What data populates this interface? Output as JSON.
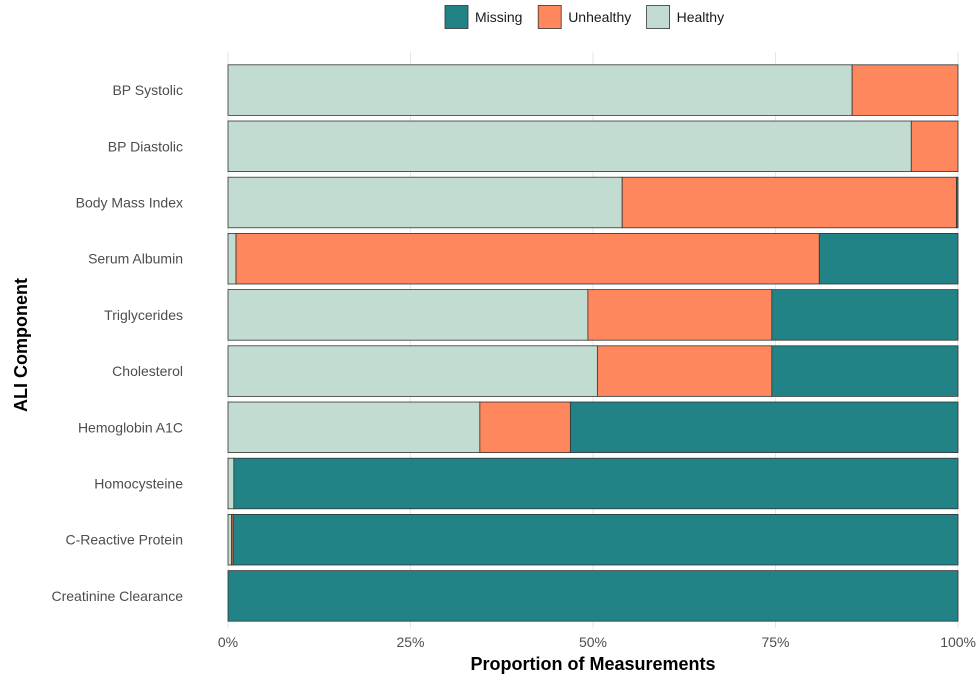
{
  "chart_data": {
    "type": "bar",
    "orientation": "horizontal",
    "stacked": true,
    "categories": [
      "BP Systolic",
      "BP Diastolic",
      "Body Mass Index",
      "Serum Albumin",
      "Triglycerides",
      "Cholesterol",
      "Hemoglobin A1C",
      "Homocysteine",
      "C-Reactive Protein",
      "Creatinine Clearance"
    ],
    "series": [
      {
        "name": "Healthy",
        "color": "#c3dcd2",
        "values": [
          0.855,
          0.936,
          0.54,
          0.011,
          0.493,
          0.506,
          0.345,
          0.008,
          0.005,
          0.0
        ]
      },
      {
        "name": "Unhealthy",
        "color": "#fe875d",
        "values": [
          0.145,
          0.064,
          0.458,
          0.799,
          0.252,
          0.239,
          0.124,
          0.0,
          0.002,
          0.0
        ]
      },
      {
        "name": "Missing",
        "color": "#228387",
        "values": [
          0.0,
          0.0,
          0.002,
          0.19,
          0.255,
          0.255,
          0.531,
          0.992,
          0.993,
          1.0
        ]
      }
    ],
    "legend_order": [
      "Missing",
      "Unhealthy",
      "Healthy"
    ],
    "legend_position": "top",
    "xlabel": "Proportion of Measurements",
    "ylabel": "ALI Component",
    "xlim": [
      0,
      1
    ],
    "x_ticks": [
      0,
      0.25,
      0.5,
      0.75,
      1
    ],
    "x_tick_labels": [
      "0%",
      "25%",
      "50%",
      "75%",
      "100%"
    ],
    "grid": true,
    "bar_outline_color": "#333333",
    "grid_color": "#e6e6e6"
  }
}
